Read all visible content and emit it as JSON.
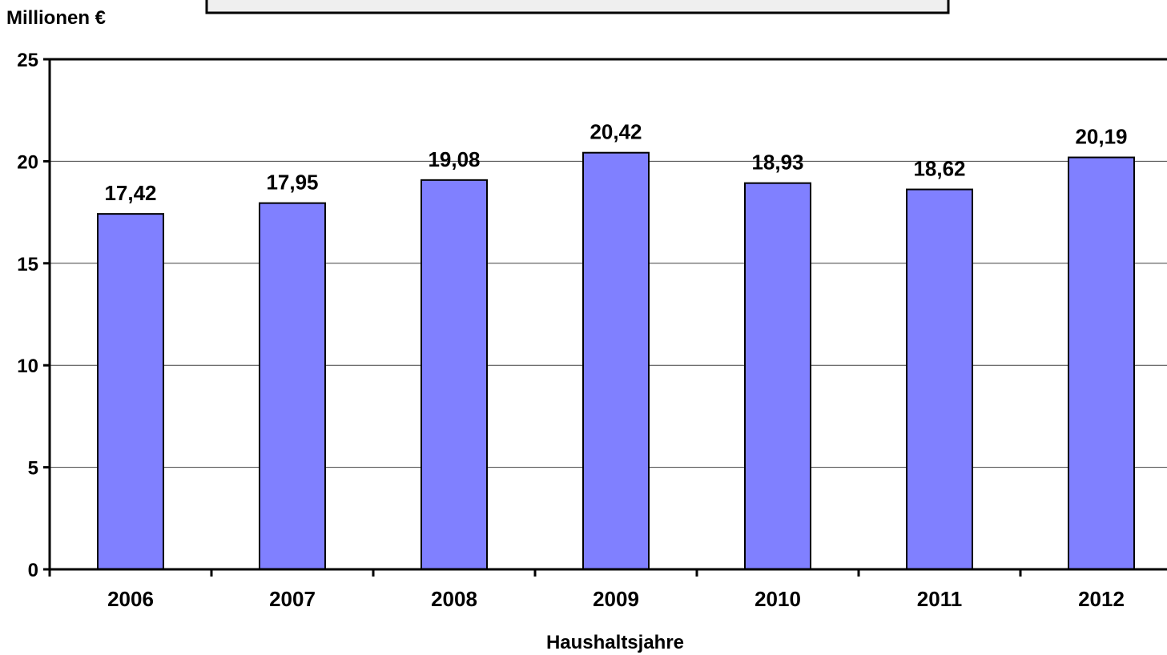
{
  "chart_data": {
    "type": "bar",
    "title": "",
    "ylabel": "Millionen €",
    "xlabel": "Haushaltsjahre",
    "categories": [
      "2006",
      "2007",
      "2008",
      "2009",
      "2010",
      "2011",
      "2012"
    ],
    "values": [
      17.42,
      17.95,
      19.08,
      20.42,
      18.93,
      18.62,
      20.19
    ],
    "value_labels": [
      "17,42",
      "17,95",
      "19,08",
      "20,42",
      "18,93",
      "18,62",
      "20,19"
    ],
    "ylim": [
      0,
      25
    ],
    "yticks": [
      0,
      5,
      10,
      15,
      20,
      25
    ],
    "grid": true,
    "bar_color": "#8080ff",
    "legend": "none"
  },
  "header_box": {
    "fill": "#efefef",
    "border": "#000000"
  }
}
